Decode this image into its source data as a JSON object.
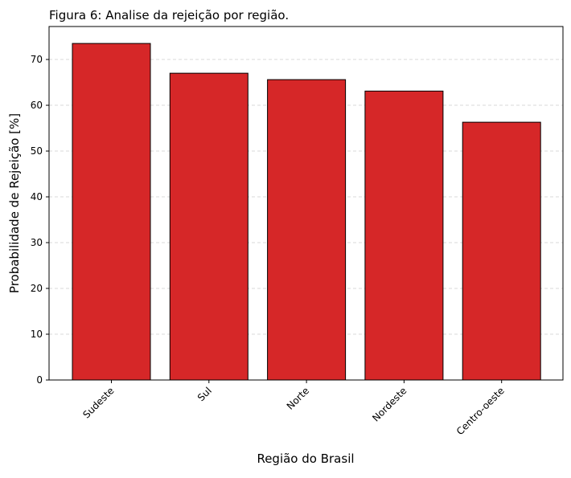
{
  "chart_data": {
    "type": "bar",
    "title": "Figura 6: Analise da rejeição por região.",
    "xlabel": "Região do Brasil",
    "ylabel": "Probabilidade de Rejeição [%]",
    "categories": [
      "Sudeste",
      "Sul",
      "Norte",
      "Nordeste",
      "Centro-oeste"
    ],
    "values": [
      73.5,
      67.0,
      65.6,
      63.1,
      56.3
    ],
    "ylim": [
      0,
      77.2
    ],
    "yticks": [
      0,
      10,
      20,
      30,
      40,
      50,
      60,
      70
    ],
    "grid": "horizontal-dashed",
    "bar_color": "#d62728",
    "bar_edge_color": "#000000"
  }
}
